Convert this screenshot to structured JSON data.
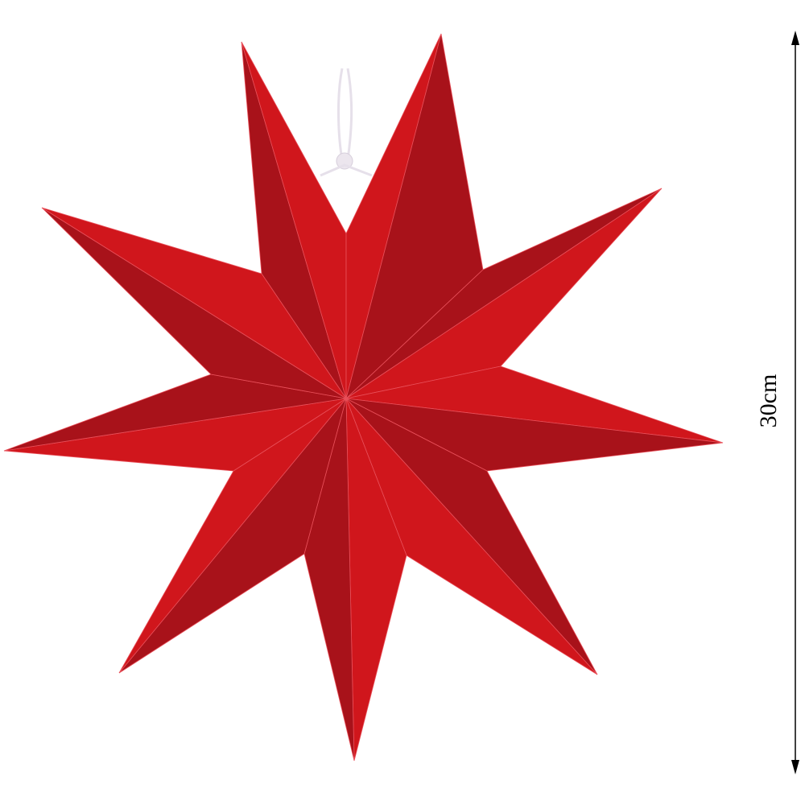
{
  "product": {
    "dimension_label": "30cm"
  },
  "colors": {
    "star_light": "#d0161c",
    "star_dark": "#a8121a",
    "string": "#e6e0ea",
    "annotation": "#000000"
  }
}
